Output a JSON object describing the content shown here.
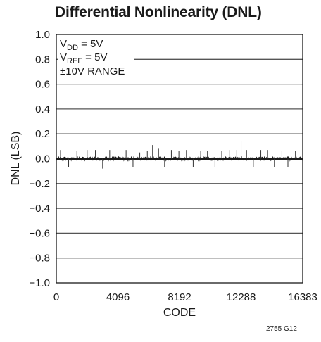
{
  "chart_data": {
    "type": "line",
    "title": "Differential Nonlinearity (DNL)",
    "xlabel": "CODE",
    "ylabel": "DNL (LSB)",
    "xlim": [
      0,
      16383
    ],
    "ylim": [
      -1.0,
      1.0
    ],
    "x_ticks": [
      "0",
      "4096",
      "8192",
      "12288",
      "16383"
    ],
    "y_ticks": [
      "1.0",
      "0.8",
      "0.6",
      "0.4",
      "0.2",
      "0.0",
      "−0.2",
      "−0.4",
      "−0.6",
      "−0.8",
      "−1.0"
    ],
    "grid": true,
    "annotations": [
      {
        "main": "V",
        "sub": "DD",
        "rest": " = 5V"
      },
      {
        "main": "V",
        "sub": "REF",
        "rest": " = 5V"
      },
      {
        "main": "±10V RANGE",
        "sub": "",
        "rest": ""
      }
    ],
    "series": [
      {
        "baseline": 0.0,
        "noise_band": 0.012,
        "spikes": [
          {
            "x": 280,
            "y": 0.07
          },
          {
            "x": 820,
            "y": -0.07
          },
          {
            "x": 1370,
            "y": 0.06
          },
          {
            "x": 2050,
            "y": 0.07
          },
          {
            "x": 2600,
            "y": 0.07
          },
          {
            "x": 3080,
            "y": -0.08
          },
          {
            "x": 3550,
            "y": 0.07
          },
          {
            "x": 4096,
            "y": 0.06
          },
          {
            "x": 4640,
            "y": 0.07
          },
          {
            "x": 5100,
            "y": -0.07
          },
          {
            "x": 5550,
            "y": 0.05
          },
          {
            "x": 6050,
            "y": 0.06
          },
          {
            "x": 6400,
            "y": 0.11
          },
          {
            "x": 6800,
            "y": 0.08
          },
          {
            "x": 7200,
            "y": -0.07
          },
          {
            "x": 7650,
            "y": 0.07
          },
          {
            "x": 8150,
            "y": 0.06
          },
          {
            "x": 8650,
            "y": 0.07
          },
          {
            "x": 9100,
            "y": -0.07
          },
          {
            "x": 9600,
            "y": 0.06
          },
          {
            "x": 10050,
            "y": 0.06
          },
          {
            "x": 10550,
            "y": -0.07
          },
          {
            "x": 11000,
            "y": 0.06
          },
          {
            "x": 11500,
            "y": 0.07
          },
          {
            "x": 12000,
            "y": 0.07
          },
          {
            "x": 12288,
            "y": 0.14
          },
          {
            "x": 12650,
            "y": 0.07
          },
          {
            "x": 13100,
            "y": -0.07
          },
          {
            "x": 13600,
            "y": 0.07
          },
          {
            "x": 14050,
            "y": 0.07
          },
          {
            "x": 14500,
            "y": -0.07
          },
          {
            "x": 15000,
            "y": 0.06
          },
          {
            "x": 15400,
            "y": -0.07
          },
          {
            "x": 15900,
            "y": 0.06
          }
        ]
      }
    ]
  },
  "figure_code": "2755 G12"
}
